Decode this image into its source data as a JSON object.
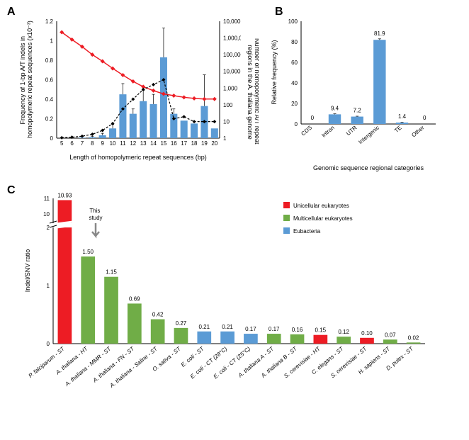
{
  "panelA": {
    "label": "A",
    "type": "combo",
    "ylabel_left": "Frequency of 1-bp A/T indels in homopolymeric repeat sequences (x10⁻³)",
    "ylabel_right": "Number of homopolymeric A/T repeat regions in the A. thaliana genome",
    "xlabel": "Length of homopolymeric repeat sequences (bp)",
    "x_categories": [
      "5",
      "6",
      "7",
      "8",
      "9",
      "10",
      "11",
      "12",
      "13",
      "14",
      "15",
      "16",
      "17",
      "18",
      "19",
      "20"
    ],
    "left_ylim": [
      0,
      1.2
    ],
    "left_yticks": [
      0,
      0.2,
      0.4,
      0.6,
      0.8,
      1.0,
      1.2
    ],
    "right_yticks": [
      "1",
      "10",
      "100",
      "1,000",
      "10,000",
      "100,000",
      "1,000,000",
      "10,000,000"
    ],
    "bars": [
      0,
      0,
      0.005,
      0.01,
      0.03,
      0.1,
      0.45,
      0.25,
      0.38,
      0.35,
      0.83,
      0.25,
      0.18,
      0.15,
      0.33,
      0.1
    ],
    "bar_errors": [
      0,
      0,
      0.01,
      0.01,
      0.02,
      0.04,
      0.11,
      0.05,
      0.11,
      0.1,
      0.3,
      0.05,
      0,
      0,
      0.32,
      0
    ],
    "line_red": [
      2200000,
      800000,
      300000,
      100000,
      40000,
      15000,
      6000,
      2500,
      1200,
      700,
      450,
      350,
      280,
      240,
      220,
      220
    ],
    "line_black": [
      0.005,
      0.01,
      0.02,
      0.04,
      0.08,
      0.15,
      0.3,
      0.4,
      0.5,
      0.55,
      0.6,
      0.2,
      0.22,
      0.17,
      0.17,
      0.17
    ],
    "bar_color": "#5b9bd5",
    "line_red_color": "#ed1c24",
    "line_black_color": "#000000",
    "background_color": "#ffffff"
  },
  "panelB": {
    "label": "B",
    "type": "bar",
    "ylabel": "Relative frequency (%)",
    "xlabel": "Genomic sequence regional categories",
    "x_categories": [
      "CDS",
      "Intron",
      "UTR",
      "Intergenic",
      "TE",
      "Other"
    ],
    "values": [
      0,
      9.4,
      7.2,
      81.9,
      1.4,
      0
    ],
    "value_labels": [
      "0",
      "9.4",
      "7.2",
      "81.9",
      "1.4",
      "0"
    ],
    "errors": [
      0,
      0.5,
      0.4,
      1.0,
      0.2,
      0
    ],
    "ylim": [
      0,
      100
    ],
    "yticks": [
      0,
      20,
      40,
      60,
      80,
      100
    ],
    "bar_color": "#5b9bd5",
    "background_color": "#ffffff"
  },
  "panelC": {
    "label": "C",
    "type": "bar",
    "ylabel": "Indel/SNV ratio",
    "x_categories": [
      "P. falciparum - ST",
      "A. thaliana - HT",
      "A. thaliana - MMR - ST",
      "A. thaliana - FN - ST",
      "A. thaliana - Saline - ST",
      "O. sativa - ST",
      "E. coli - ST",
      "E. coli - CT (28°C)",
      "E. coli - CT (25°C)",
      "A. thaliana A - ST",
      "A. thaliana B - ST",
      "S. cerevisiae - HT",
      "C. elegans - ST",
      "S. cerevisiae - ST",
      "H. sapiens - ST",
      "D. pulex - ST"
    ],
    "values": [
      10.93,
      1.5,
      1.15,
      0.69,
      0.42,
      0.27,
      0.21,
      0.21,
      0.17,
      0.17,
      0.16,
      0.15,
      0.12,
      0.1,
      0.07,
      0.02
    ],
    "value_labels": [
      "10.93",
      "1.50",
      "1.15",
      "0.69",
      "0.42",
      "0.27",
      "0.21",
      "0.21",
      "0.17",
      "0.17",
      "0.16",
      "0.15",
      "0.12",
      "0.10",
      "0.07",
      "0.02"
    ],
    "groups": [
      "uni",
      "multi",
      "multi",
      "multi",
      "multi",
      "multi",
      "eub",
      "eub",
      "eub",
      "multi",
      "multi",
      "uni",
      "multi",
      "uni",
      "multi",
      "multi"
    ],
    "colors": {
      "uni": "#ed1c24",
      "multi": "#70ad47",
      "eub": "#5b9bd5"
    },
    "yticks_lower": [
      0,
      1,
      2
    ],
    "yticks_upper": [
      10,
      11
    ],
    "annotation": "This study",
    "annotation_target_index": 1,
    "legend": [
      {
        "label": "Unicellular eukaryotes",
        "color": "#ed1c24"
      },
      {
        "label": "Multicellular eukaryotes",
        "color": "#70ad47"
      },
      {
        "label": "Eubacteria",
        "color": "#5b9bd5"
      }
    ],
    "background_color": "#ffffff"
  }
}
